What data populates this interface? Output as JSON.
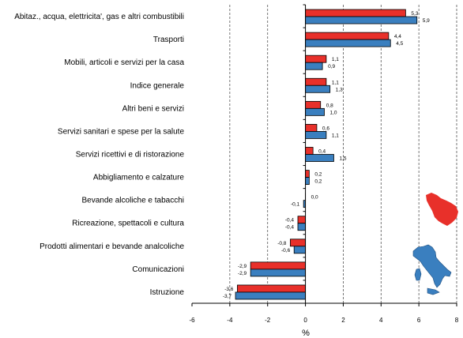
{
  "chart_data": {
    "type": "bar",
    "orientation": "horizontal",
    "xlabel": "%",
    "xlim": [
      -6,
      8
    ],
    "xticks": [
      -6,
      -4,
      -2,
      0,
      2,
      4,
      6,
      8
    ],
    "grid": "vertical dashed",
    "categories": [
      "Abitaz., acqua, elettricita', gas e altri combustibili",
      "Trasporti",
      "Mobili, articoli e servizi per la casa",
      "Indice generale",
      "Altri beni e servizi",
      "Servizi sanitari e spese per la salute",
      "Servizi ricettivi e di ristorazione",
      "Abbigliamento e calzature",
      "Bevande alcoliche e tabacchi",
      "Ricreazione, spettacoli e cultura",
      "Prodotti alimentari e bevande analcoliche",
      "Comunicazioni",
      "Istruzione"
    ],
    "series": [
      {
        "color": "#e8302a",
        "values": [
          5.3,
          4.4,
          1.1,
          1.1,
          0.8,
          0.6,
          0.4,
          0.2,
          0.0,
          -0.4,
          -0.8,
          -2.9,
          -3.6
        ],
        "labels": [
          "5,3",
          "4,4",
          "1,1",
          "1,1",
          "0,8",
          "0,6",
          "0,4",
          "0,2",
          "0,0",
          "-0,4",
          "-0,8",
          "-2,9",
          "-3,6"
        ]
      },
      {
        "color": "#3a7fbf",
        "values": [
          5.9,
          4.5,
          0.9,
          1.3,
          1.0,
          1.1,
          1.5,
          0.2,
          -0.1,
          -0.4,
          -0.6,
          -2.9,
          -3.7
        ],
        "labels": [
          "5,9",
          "4,5",
          "0,9",
          "1,3",
          "1,0",
          "1,1",
          "1,5",
          "0,2",
          "-0,1",
          "-0,4",
          "-0,6",
          "-2,9",
          "-3,7"
        ]
      }
    ],
    "legend_placement": "bottom-right (map icons)"
  },
  "legend_icons": {
    "region": {
      "name": "tuscany-map-icon",
      "color": "#e8302a"
    },
    "country": {
      "name": "italy-map-icon",
      "color": "#3a7fbf"
    }
  }
}
